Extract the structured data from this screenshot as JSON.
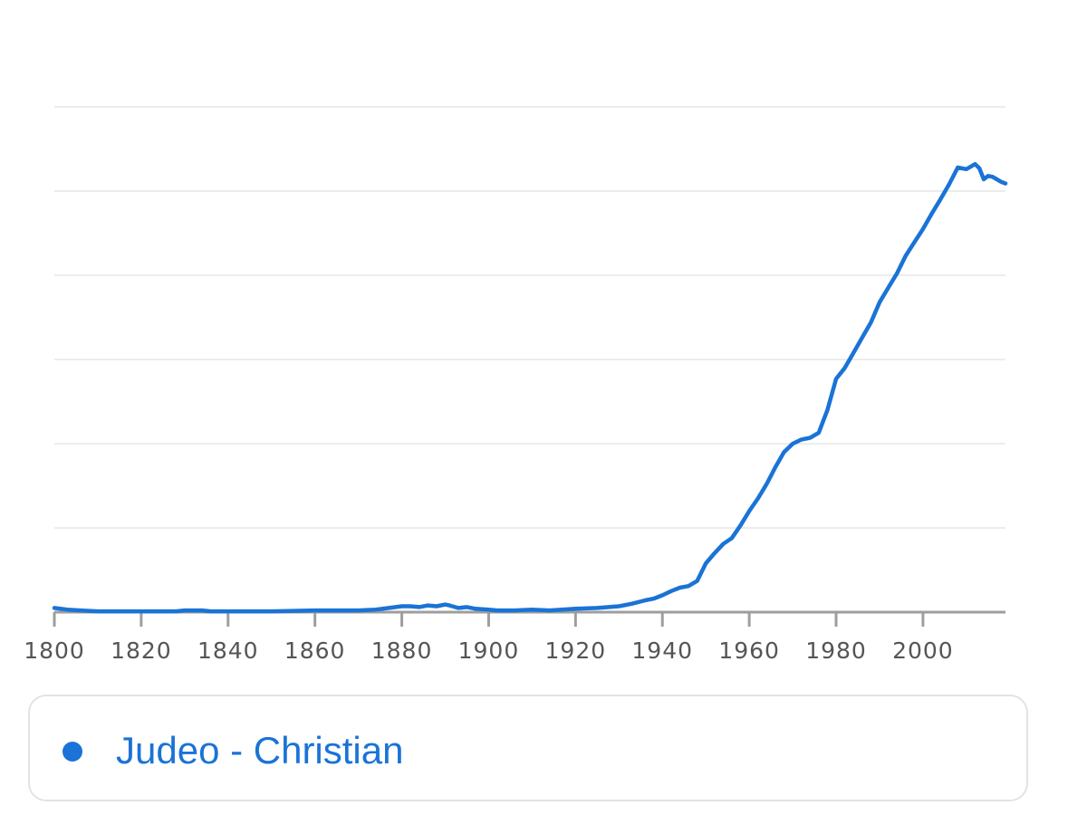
{
  "chart_data": {
    "type": "line",
    "title": "",
    "xlabel": "",
    "ylabel": "",
    "xlim": [
      1800,
      2019
    ],
    "ylim": [
      0,
      6
    ],
    "x_ticks": [
      "1800",
      "1820",
      "1840",
      "1860",
      "1880",
      "1900",
      "1920",
      "1940",
      "1960",
      "1980",
      "2000"
    ],
    "grid": true,
    "legend_position": "bottom",
    "colors": {
      "series": "#1a73d6",
      "grid": "#ececec",
      "axis": "#9e9e9e"
    },
    "series": [
      {
        "name": "Judeo - Christian",
        "x": [
          1800,
          1803,
          1806,
          1810,
          1820,
          1828,
          1830,
          1834,
          1836,
          1850,
          1860,
          1870,
          1874,
          1877,
          1880,
          1882,
          1884,
          1886,
          1888,
          1890,
          1891,
          1893,
          1895,
          1897,
          1900,
          1902,
          1906,
          1910,
          1914,
          1920,
          1925,
          1930,
          1933,
          1936,
          1938,
          1940,
          1942,
          1944,
          1946,
          1948,
          1950,
          1952,
          1954,
          1956,
          1958,
          1960,
          1962,
          1964,
          1966,
          1968,
          1970,
          1972,
          1974,
          1976,
          1978,
          1980,
          1982,
          1984,
          1986,
          1988,
          1990,
          1992,
          1994,
          1996,
          1998,
          2000,
          2002,
          2004,
          2006,
          2008,
          2010,
          2012,
          2013,
          2014,
          2015,
          2016,
          2017,
          2018,
          2019
        ],
        "y": [
          0.05,
          0.03,
          0.02,
          0.01,
          0.01,
          0.01,
          0.02,
          0.02,
          0.01,
          0.01,
          0.02,
          0.02,
          0.03,
          0.05,
          0.07,
          0.07,
          0.06,
          0.08,
          0.07,
          0.09,
          0.08,
          0.05,
          0.06,
          0.04,
          0.03,
          0.02,
          0.02,
          0.03,
          0.02,
          0.04,
          0.05,
          0.07,
          0.1,
          0.14,
          0.16,
          0.2,
          0.25,
          0.29,
          0.31,
          0.37,
          0.58,
          0.7,
          0.81,
          0.88,
          1.03,
          1.2,
          1.35,
          1.52,
          1.72,
          1.9,
          2.0,
          2.05,
          2.07,
          2.13,
          2.4,
          2.77,
          2.9,
          3.08,
          3.26,
          3.44,
          3.68,
          3.85,
          4.02,
          4.23,
          4.39,
          4.55,
          4.73,
          4.9,
          5.08,
          5.28,
          5.26,
          5.32,
          5.27,
          5.14,
          5.18,
          5.17,
          5.14,
          5.11,
          5.09
        ]
      }
    ]
  }
}
